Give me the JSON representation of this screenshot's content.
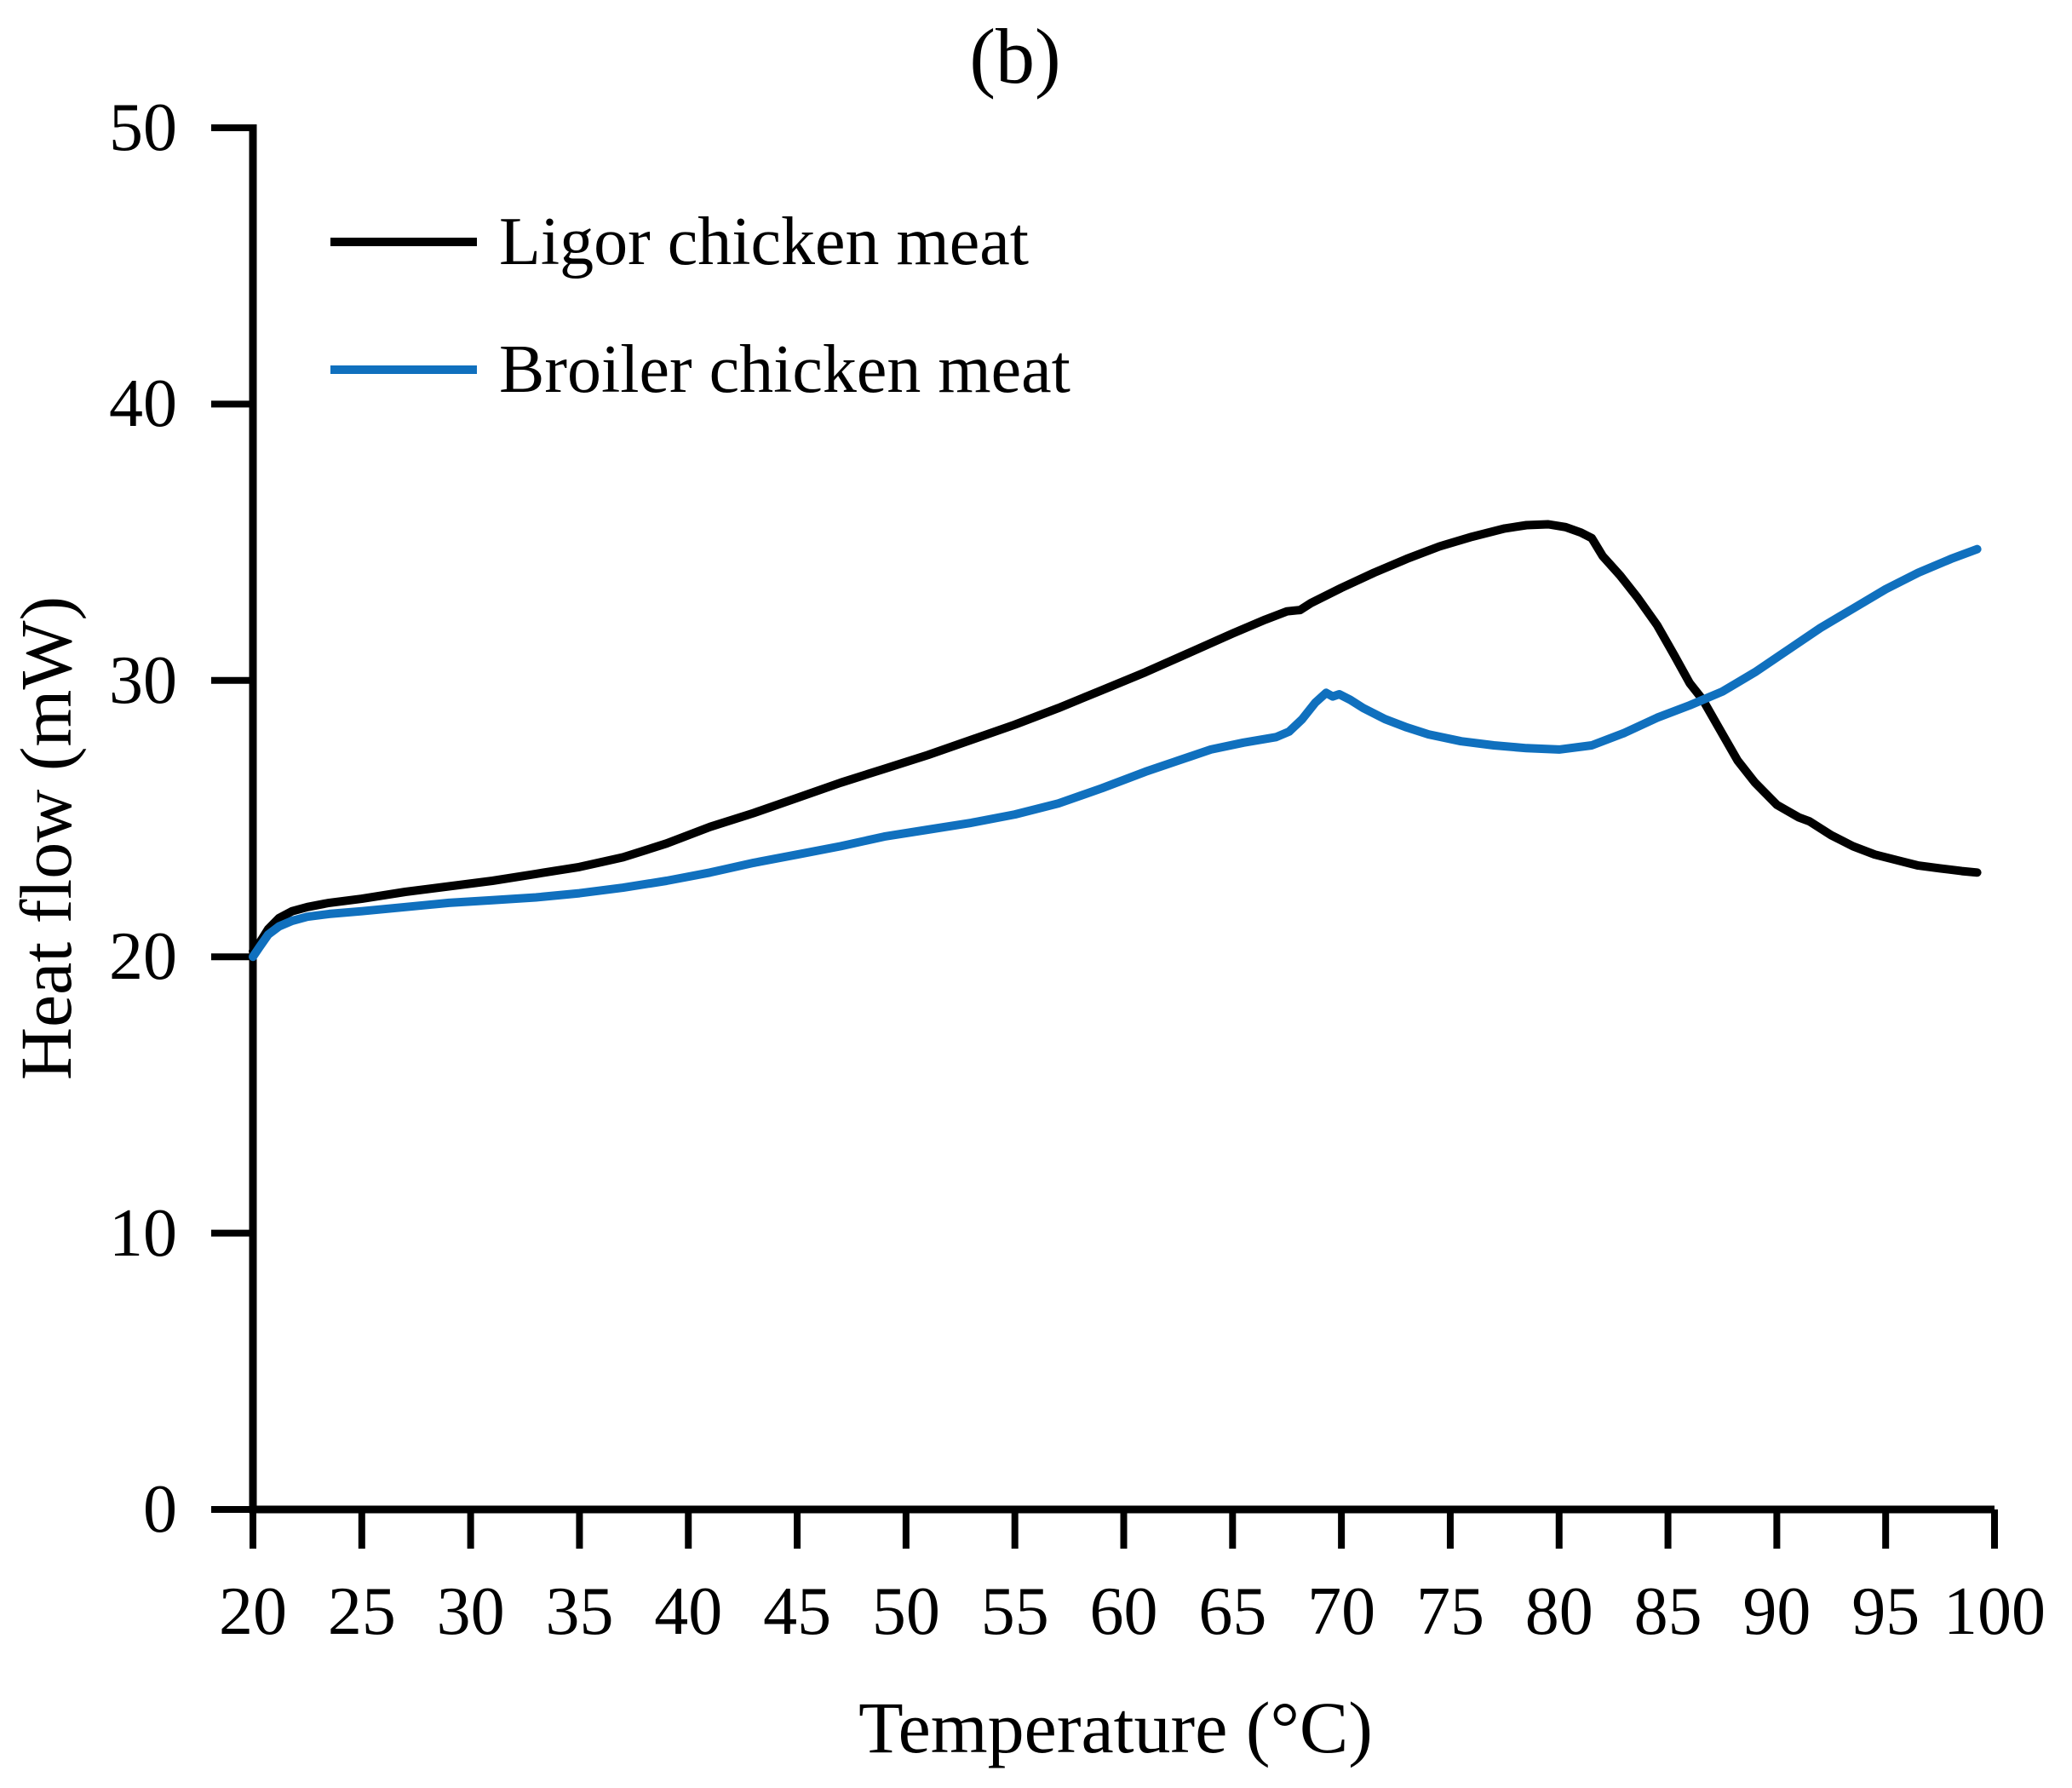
{
  "figure": {
    "title": "(b)",
    "y_axis_label": "Heat flow (mW)",
    "x_axis_label": "Temperature (°C)",
    "legend": [
      {
        "label": "Ligor chicken meat",
        "color": "#000000"
      },
      {
        "label": "Broiler chicken meat",
        "color": "#1070BE"
      }
    ]
  },
  "chart_data": {
    "type": "line",
    "title": "(b)",
    "xlabel": "Temperature (°C)",
    "ylabel": "Heat flow (mW)",
    "xlim": [
      20,
      100
    ],
    "ylim": [
      0,
      50
    ],
    "x_ticks": [
      20,
      25,
      30,
      35,
      40,
      45,
      50,
      55,
      60,
      65,
      70,
      75,
      80,
      85,
      90,
      95,
      100
    ],
    "y_ticks": [
      0,
      10,
      20,
      30,
      40,
      50
    ],
    "grid": false,
    "legend_position": "upper-left-inside",
    "series": [
      {
        "name": "Ligor chicken meat",
        "color": "#000000",
        "points": [
          [
            20,
            20.2
          ],
          [
            20.3,
            20.5
          ],
          [
            20.7,
            21.0
          ],
          [
            21.2,
            21.4
          ],
          [
            21.8,
            21.65
          ],
          [
            22.5,
            21.8
          ],
          [
            23.5,
            21.95
          ],
          [
            25,
            22.1
          ],
          [
            27,
            22.35
          ],
          [
            29,
            22.55
          ],
          [
            31,
            22.75
          ],
          [
            33,
            23.0
          ],
          [
            35,
            23.25
          ],
          [
            37,
            23.6
          ],
          [
            39,
            24.1
          ],
          [
            41,
            24.7
          ],
          [
            43,
            25.2
          ],
          [
            45,
            25.75
          ],
          [
            47,
            26.3
          ],
          [
            49,
            26.8
          ],
          [
            51,
            27.3
          ],
          [
            53,
            27.85
          ],
          [
            55,
            28.4
          ],
          [
            57,
            29.0
          ],
          [
            59,
            29.65
          ],
          [
            61,
            30.3
          ],
          [
            63,
            31.0
          ],
          [
            65,
            31.7
          ],
          [
            66.5,
            32.2
          ],
          [
            67.5,
            32.5
          ],
          [
            68.1,
            32.55
          ],
          [
            68.6,
            32.8
          ],
          [
            70,
            33.35
          ],
          [
            71.5,
            33.9
          ],
          [
            73,
            34.4
          ],
          [
            74.5,
            34.85
          ],
          [
            76,
            35.2
          ],
          [
            77.5,
            35.5
          ],
          [
            78.5,
            35.62
          ],
          [
            79.5,
            35.65
          ],
          [
            80.3,
            35.55
          ],
          [
            81,
            35.35
          ],
          [
            81.5,
            35.15
          ],
          [
            82,
            34.5
          ],
          [
            82.8,
            33.8
          ],
          [
            83.6,
            33.0
          ],
          [
            84.5,
            32.0
          ],
          [
            85.3,
            30.9
          ],
          [
            86,
            29.9
          ],
          [
            86.6,
            29.3
          ],
          [
            87.4,
            28.2
          ],
          [
            88.2,
            27.1
          ],
          [
            89,
            26.3
          ],
          [
            90,
            25.5
          ],
          [
            91,
            25.05
          ],
          [
            91.5,
            24.9
          ],
          [
            92.5,
            24.4
          ],
          [
            93.5,
            24.0
          ],
          [
            94.5,
            23.7
          ],
          [
            95.5,
            23.5
          ],
          [
            96.5,
            23.3
          ],
          [
            97.5,
            23.2
          ],
          [
            98.5,
            23.1
          ],
          [
            99.2,
            23.05
          ]
        ]
      },
      {
        "name": "Broiler chicken meat",
        "color": "#1070BE",
        "points": [
          [
            20,
            20.0
          ],
          [
            20.3,
            20.35
          ],
          [
            20.7,
            20.8
          ],
          [
            21.2,
            21.1
          ],
          [
            21.8,
            21.3
          ],
          [
            22.5,
            21.45
          ],
          [
            23.5,
            21.55
          ],
          [
            25,
            21.65
          ],
          [
            27,
            21.8
          ],
          [
            29,
            21.95
          ],
          [
            31,
            22.05
          ],
          [
            33,
            22.15
          ],
          [
            35,
            22.3
          ],
          [
            37,
            22.5
          ],
          [
            39,
            22.75
          ],
          [
            41,
            23.05
          ],
          [
            43,
            23.4
          ],
          [
            45,
            23.7
          ],
          [
            47,
            24.0
          ],
          [
            49,
            24.35
          ],
          [
            51,
            24.6
          ],
          [
            53,
            24.85
          ],
          [
            55,
            25.15
          ],
          [
            57,
            25.55
          ],
          [
            59,
            26.1
          ],
          [
            61,
            26.7
          ],
          [
            62.5,
            27.1
          ],
          [
            64,
            27.5
          ],
          [
            65.5,
            27.75
          ],
          [
            67,
            27.95
          ],
          [
            67.6,
            28.15
          ],
          [
            68.2,
            28.6
          ],
          [
            68.8,
            29.2
          ],
          [
            69.3,
            29.55
          ],
          [
            69.6,
            29.42
          ],
          [
            69.9,
            29.5
          ],
          [
            70.4,
            29.3
          ],
          [
            71,
            29.0
          ],
          [
            72,
            28.6
          ],
          [
            73,
            28.3
          ],
          [
            74,
            28.05
          ],
          [
            75.5,
            27.8
          ],
          [
            77,
            27.65
          ],
          [
            78.5,
            27.55
          ],
          [
            80,
            27.5
          ],
          [
            81.5,
            27.65
          ],
          [
            83,
            28.1
          ],
          [
            84.5,
            28.65
          ],
          [
            86,
            29.1
          ],
          [
            87.5,
            29.6
          ],
          [
            89,
            30.3
          ],
          [
            90.5,
            31.1
          ],
          [
            92,
            31.9
          ],
          [
            93.5,
            32.6
          ],
          [
            95,
            33.3
          ],
          [
            96.5,
            33.9
          ],
          [
            98,
            34.4
          ],
          [
            99.2,
            34.75
          ]
        ]
      }
    ]
  }
}
